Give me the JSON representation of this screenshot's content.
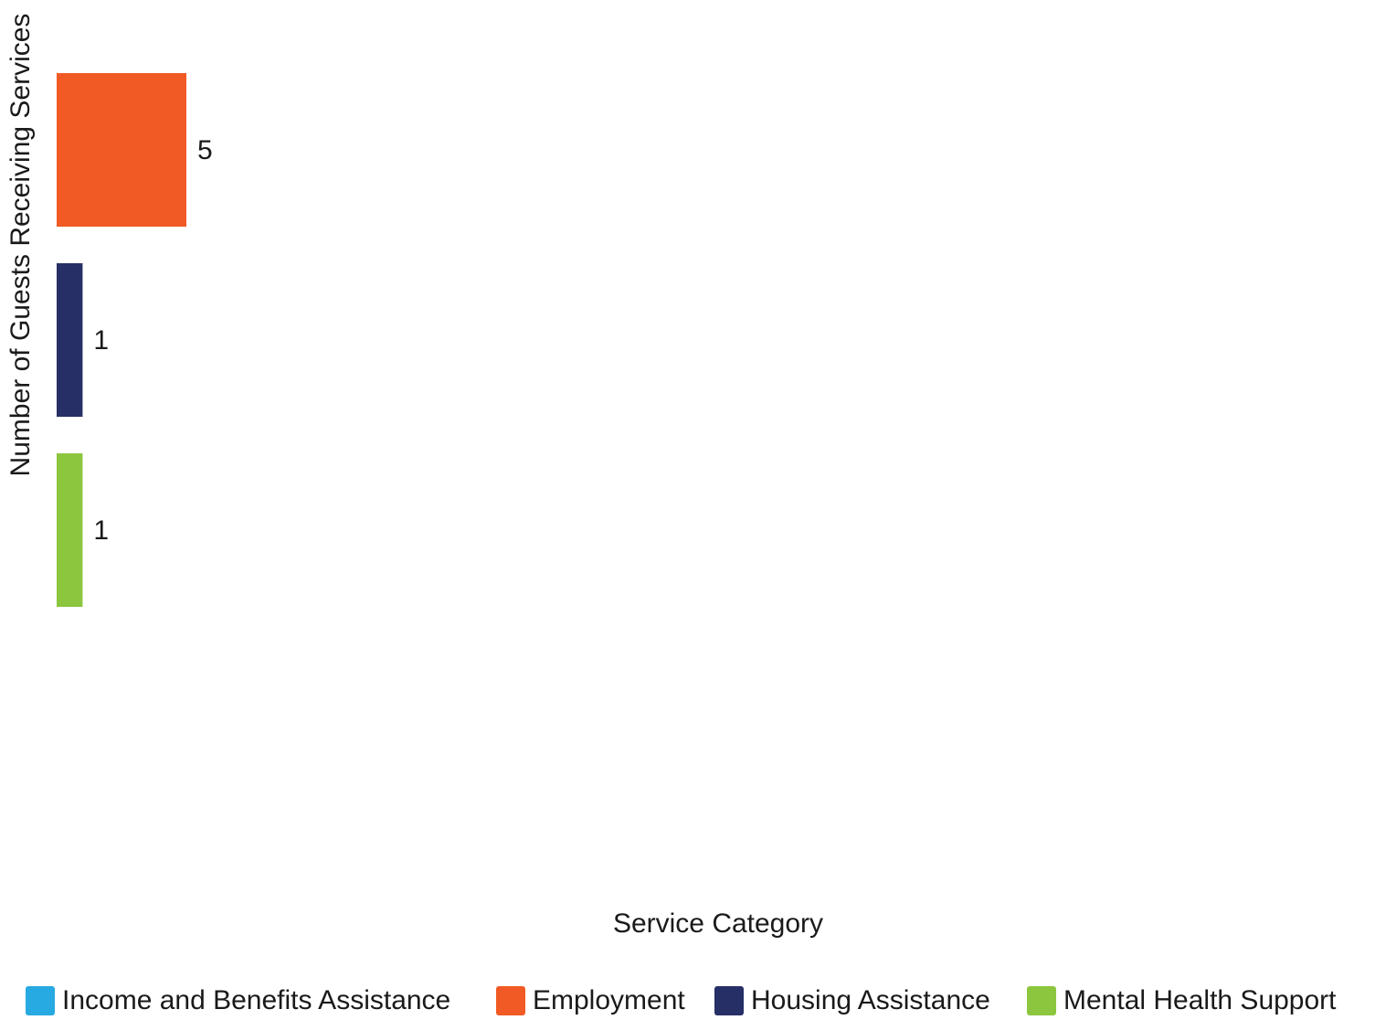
{
  "chart_data": {
    "type": "bar",
    "orientation": "horizontal",
    "categories": [
      "Income and Benefits Assistance",
      "Employment",
      "Housing Assistance",
      "Mental Health Support"
    ],
    "values": [
      0,
      5,
      1,
      1
    ],
    "data_labels": [
      "",
      "5",
      "1",
      "1"
    ],
    "colors": [
      "#27a9e1",
      "#f15a24",
      "#262f66",
      "#8cc63f"
    ],
    "xlabel": "Service Category",
    "ylabel": "Number of Guests Receiving Services",
    "legend_position": "bottom",
    "grid": false
  }
}
